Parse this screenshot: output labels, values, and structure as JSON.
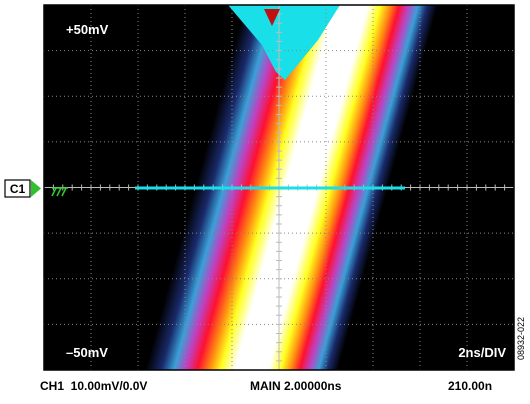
{
  "screen": {
    "top_left": "+50mV",
    "bottom_left": "–50mV",
    "bottom_right": "2ns/DIV",
    "channel_marker": "C1"
  },
  "status_bar": {
    "channel": "CH1  10.00mV/0.0V",
    "timebase": "MAIN 2.00000ns",
    "position": "210.00n"
  },
  "figure_id": "08932-022"
}
